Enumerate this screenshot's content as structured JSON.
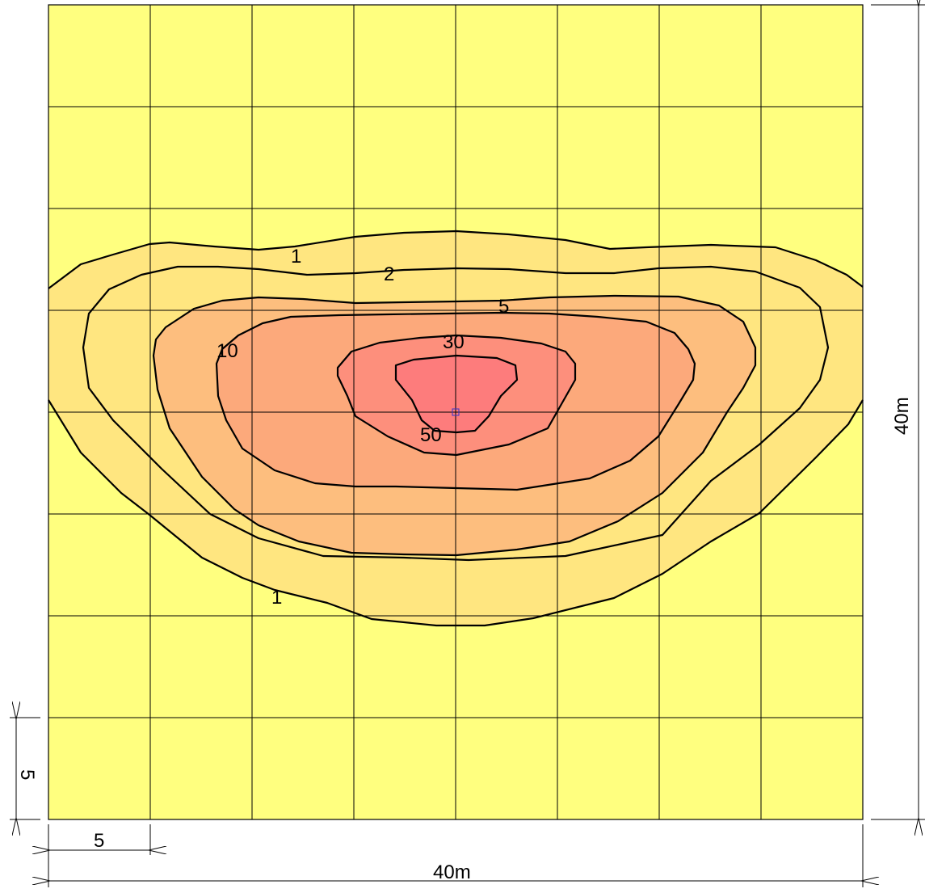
{
  "colors": {
    "background": "#ffff7f",
    "band_1": "#ffe680",
    "band_5": "#fdbe7e",
    "band_10": "#fca97b",
    "band_30": "#fd8f7c",
    "band_50": "#fd7c7c",
    "grid_line": "#000000",
    "contour_line": "#000000",
    "source_marker": "#3333cc"
  },
  "contour_labels": [
    "1",
    "2",
    "5",
    "10",
    "30",
    "50",
    "1"
  ],
  "dimensions": {
    "cell_width_label": "5",
    "total_width_label": "40m",
    "cell_height_label": "5",
    "total_height_label": "40m"
  },
  "grid": {
    "columns": 8,
    "rows": 8
  }
}
